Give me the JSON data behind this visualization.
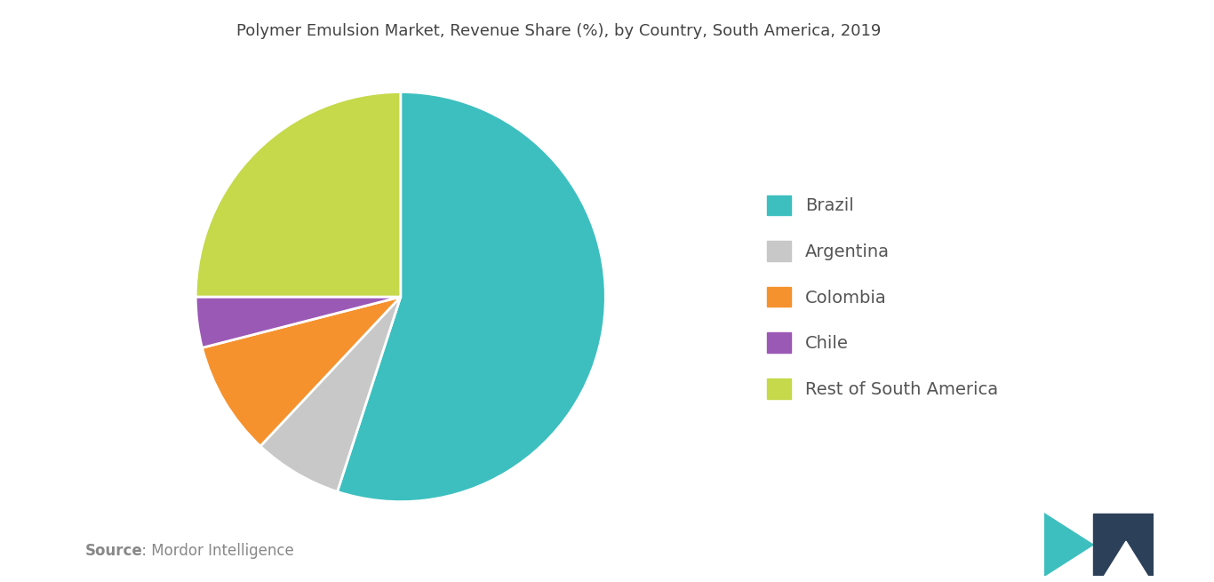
{
  "title": "Polymer Emulsion Market, Revenue Share (%), by Country, South America, 2019",
  "labels": [
    "Brazil",
    "Argentina",
    "Colombia",
    "Chile",
    "Rest of South America"
  ],
  "values": [
    55,
    7,
    9,
    4,
    25
  ],
  "colors": [
    "#3dbfbf",
    "#c8c8c8",
    "#f5922e",
    "#9b59b6",
    "#c5d94a"
  ],
  "legend_labels": [
    "Brazil",
    "Argentina",
    "Colombia",
    "Chile",
    "Rest of South America"
  ],
  "legend_colors": [
    "#3dbfbf",
    "#c8c8c8",
    "#f5922e",
    "#9b59b6",
    "#c5d94a"
  ],
  "source_bold": "Source",
  "source_rest": " : Mordor Intelligence",
  "startangle": 90,
  "background_color": "#ffffff",
  "title_fontsize": 13,
  "legend_fontsize": 14,
  "source_fontsize": 12
}
